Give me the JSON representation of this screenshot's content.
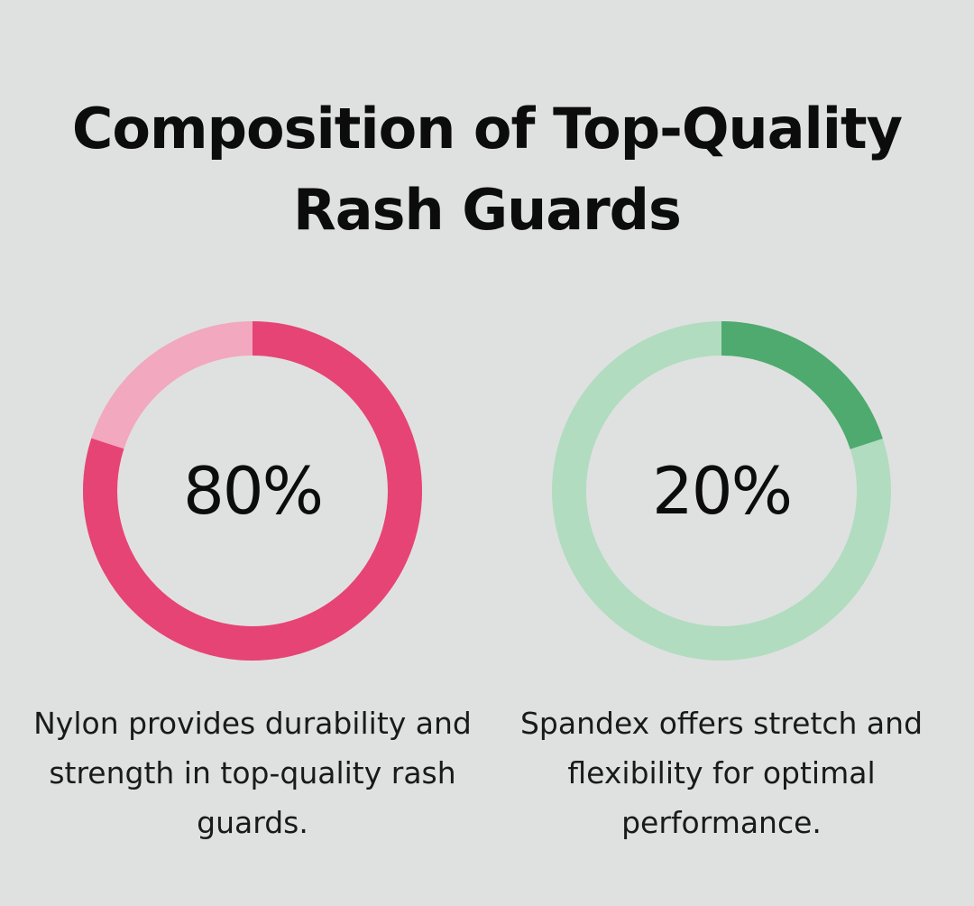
{
  "title_line1": "Composition of Top-Quality",
  "title_line2": "Rash Guards",
  "chart_data": {
    "type": "pie",
    "title": "Composition of Top-Quality Rash Guards",
    "items": [
      {
        "label": "80%",
        "value": 80,
        "description": "Nylon provides durability and strength in top-quality rash guards.",
        "color": "#e64475",
        "track_color": "#f2a8be"
      },
      {
        "label": "20%",
        "value": 20,
        "description": "Spandex offers stretch and flexibility for optimal performance.",
        "color": "#4eaa6f",
        "track_color": "#b1dcc0"
      }
    ]
  }
}
